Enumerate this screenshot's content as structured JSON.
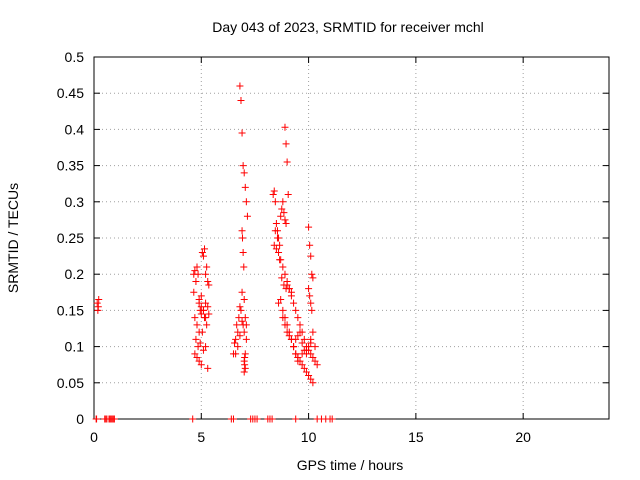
{
  "chart_data": {
    "type": "scatter",
    "title": "Day 043 of 2023, SRMTID for receiver mchl",
    "xlabel": "GPS time / hours",
    "ylabel": "SRMTID / TECUs",
    "xlim": [
      0,
      24
    ],
    "ylim": [
      0,
      0.5
    ],
    "xticks": [
      0,
      5,
      10,
      15,
      20
    ],
    "xtick_labels": [
      "0",
      "5",
      "10",
      "15",
      "20"
    ],
    "yticks": [
      0,
      0.05,
      0.1,
      0.15,
      0.2,
      0.25,
      0.3,
      0.35,
      0.4,
      0.45,
      0.5
    ],
    "ytick_labels": [
      "0",
      "0.05",
      "0.1",
      "0.15",
      "0.2",
      "0.25",
      "0.3",
      "0.35",
      "0.4",
      "0.45",
      "0.5"
    ],
    "grid": true,
    "marker": "+",
    "marker_color": "#ff0000",
    "series": [
      {
        "name": "SRMTID",
        "x": [
          0.15,
          0.18,
          0.2,
          0.22,
          0.1,
          0.12,
          0.5,
          0.55,
          0.6,
          0.7,
          0.75,
          0.8,
          0.85,
          0.9,
          0.95,
          4.6,
          4.65,
          4.7,
          4.75,
          4.8,
          4.85,
          4.9,
          4.95,
          5.0,
          5.05,
          5.1,
          5.15,
          5.2,
          5.25,
          5.3,
          5.35,
          4.7,
          4.8,
          4.9,
          5.0,
          5.1,
          5.2,
          5.3,
          4.75,
          4.85,
          4.95,
          5.05,
          5.15,
          5.25,
          5.35,
          4.7,
          4.8,
          4.9,
          5.0,
          5.1,
          5.2,
          5.3,
          4.65,
          4.9,
          5.0,
          5.1,
          5.2,
          6.4,
          6.5,
          6.55,
          6.6,
          6.65,
          6.7,
          6.75,
          6.8,
          6.85,
          6.9,
          6.95,
          7.0,
          7.05,
          7.1,
          6.5,
          6.6,
          6.7,
          6.8,
          6.9,
          7.0,
          7.1,
          6.8,
          6.85,
          6.9,
          6.95,
          7.0,
          7.05,
          7.1,
          7.15,
          6.9,
          6.92,
          6.95,
          6.98,
          7.0,
          7.02,
          7.05,
          7.0,
          7.02,
          7.05,
          8.3,
          8.35,
          8.4,
          8.45,
          8.5,
          8.55,
          8.6,
          8.65,
          8.7,
          8.75,
          8.8,
          8.85,
          8.9,
          8.95,
          8.4,
          8.5,
          8.6,
          8.7,
          8.8,
          8.9,
          9.0,
          9.1,
          9.2,
          8.45,
          8.55,
          8.65,
          8.75,
          8.85,
          8.95,
          8.6,
          8.7,
          8.8,
          8.9,
          9.0,
          9.1,
          9.2,
          9.3,
          9.4,
          9.5,
          8.9,
          8.95,
          9.0,
          9.05,
          8.8,
          8.9,
          9.0,
          9.1,
          9.2,
          9.3,
          9.4,
          9.5,
          9.6,
          9.7,
          9.8,
          9.9,
          10.0,
          10.1,
          10.2,
          9.0,
          9.1,
          9.2,
          9.3,
          9.4,
          9.5,
          9.6,
          9.7,
          9.8,
          9.9,
          10.0,
          10.1,
          10.2,
          10.3,
          10.4,
          9.3,
          9.4,
          9.5,
          9.6,
          9.7,
          9.8,
          9.9,
          10.0,
          10.1,
          10.2,
          10.3,
          9.5,
          9.7,
          9.9,
          10.1,
          10.0,
          10.05,
          10.1,
          10.15,
          10.2,
          10.0,
          10.05,
          10.1,
          10.15,
          7.3,
          7.4,
          7.5,
          7.6,
          8.1,
          8.2,
          9.4,
          10.4,
          10.6,
          10.8,
          11.0,
          11.1
        ],
        "y": [
          0.16,
          0.15,
          0.155,
          0.165,
          0,
          0,
          0,
          0,
          0,
          0,
          0,
          0,
          0,
          0,
          0,
          0,
          0.2,
          0.205,
          0.19,
          0.21,
          0.2,
          0.16,
          0.15,
          0.155,
          0.23,
          0.225,
          0.235,
          0.2,
          0.21,
          0.19,
          0.185,
          0.14,
          0.13,
          0.12,
          0.145,
          0.15,
          0.16,
          0.155,
          0.11,
          0.1,
          0.105,
          0.12,
          0.14,
          0.13,
          0.145,
          0.09,
          0.085,
          0.08,
          0.075,
          0.095,
          0.1,
          0.07,
          0.175,
          0.165,
          0.17,
          0.15,
          0.14,
          0,
          0.09,
          0.105,
          0.11,
          0.13,
          0.12,
          0.14,
          0.155,
          0.15,
          0.135,
          0.13,
          0.12,
          0.14,
          0.13,
          0,
          0.09,
          0.1,
          0.115,
          0.175,
          0.165,
          0.11,
          0.46,
          0.44,
          0.395,
          0.35,
          0.34,
          0.32,
          0.3,
          0.28,
          0.26,
          0.25,
          0.23,
          0.21,
          0.08,
          0.075,
          0.07,
          0.065,
          0.085,
          0.09,
          0,
          0.31,
          0.315,
          0.3,
          0.27,
          0.26,
          0.25,
          0.24,
          0.28,
          0.29,
          0.3,
          0.285,
          0.275,
          0.27,
          0.24,
          0.235,
          0.23,
          0.22,
          0.21,
          0.2,
          0.19,
          0.18,
          0.17,
          0.26,
          0.25,
          0.22,
          0.195,
          0.185,
          0.18,
          0.16,
          0.165,
          0.15,
          0.14,
          0.13,
          0.12,
          0.11,
          0.1,
          0.09,
          0.08,
          0.403,
          0.38,
          0.355,
          0.31,
          0.14,
          0.13,
          0.12,
          0.115,
          0.11,
          0.1,
          0.09,
          0.085,
          0.08,
          0.075,
          0.07,
          0.065,
          0.06,
          0.055,
          0.05,
          0.185,
          0.18,
          0.175,
          0.16,
          0.15,
          0.14,
          0.13,
          0.12,
          0.11,
          0.1,
          0.095,
          0.09,
          0.085,
          0.08,
          0.075,
          0.1,
          0.11,
          0.115,
          0.12,
          0.105,
          0.095,
          0.09,
          0.1,
          0.11,
          0.12,
          0.1,
          0.085,
          0.09,
          0.095,
          0.105,
          0.265,
          0.24,
          0.225,
          0.2,
          0.195,
          0.18,
          0.17,
          0.16,
          0.15,
          0,
          0,
          0,
          0,
          0,
          0,
          0,
          0,
          0,
          0,
          0,
          0
        ]
      }
    ]
  }
}
